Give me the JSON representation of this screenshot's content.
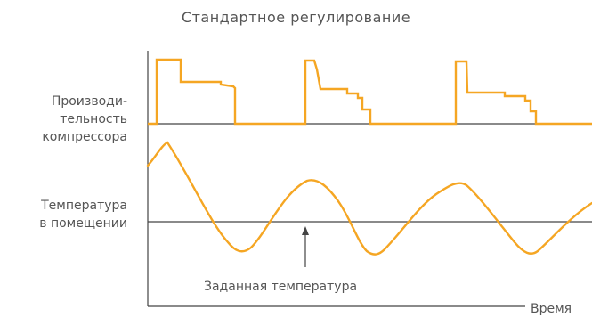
{
  "title": "Стандартное регулирование",
  "compressor_label": [
    "Производи-",
    "тельность",
    "компрессора"
  ],
  "temperature_label": [
    "Температура",
    "в помещении"
  ],
  "setpoint_label": "Заданная температура",
  "time_label": "Время",
  "colors": {
    "curve": "#F5A623",
    "axis": "#444444",
    "text": "#555555"
  }
}
